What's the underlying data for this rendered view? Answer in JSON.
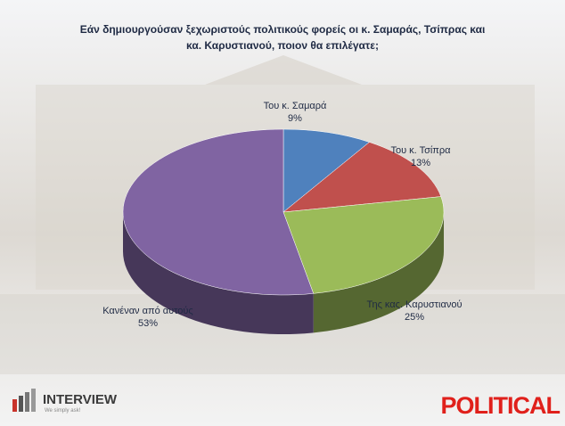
{
  "chart_data": {
    "type": "pie",
    "title": "Εάν δημιουργούσαν ξεχωριστούς πολιτικούς φορείς οι κ. Σαμαράς, Τσίπρας και κα. Καρυστιανού, ποιον θα επιλέγατε;",
    "categories": [
      "Του κ. Σαμαρά",
      "Του κ. Τσίπρα",
      "Της κας. Καρυστιανού",
      "Κανέναν από αυτούς"
    ],
    "values": [
      9,
      13,
      25,
      53
    ],
    "value_labels": [
      "9%",
      "13%",
      "25%",
      "53%"
    ],
    "colors": [
      "#4f81bd",
      "#c0504d",
      "#9bbb59",
      "#8064a2"
    ]
  },
  "footer": {
    "left": "INTERVIEW",
    "tagline": "We simply ask!",
    "right": "POLITICAL"
  }
}
